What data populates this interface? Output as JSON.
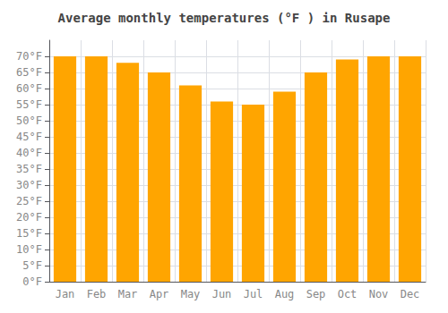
{
  "chart_data": {
    "type": "bar",
    "title": "Average monthly temperatures (°F ) in Rusape",
    "categories": [
      "Jan",
      "Feb",
      "Mar",
      "Apr",
      "May",
      "Jun",
      "Jul",
      "Aug",
      "Sep",
      "Oct",
      "Nov",
      "Dec"
    ],
    "values": [
      70,
      70,
      68,
      65,
      61,
      56,
      55,
      59,
      65,
      69,
      70,
      70
    ],
    "color": "#FFA500",
    "ylim": [
      0,
      75
    ],
    "yticks": [
      {
        "value": 0,
        "label": "0°F"
      },
      {
        "value": 5,
        "label": "5°F"
      },
      {
        "value": 10,
        "label": "10°F"
      },
      {
        "value": 15,
        "label": "15°F"
      },
      {
        "value": 20,
        "label": "20°F"
      },
      {
        "value": 25,
        "label": "25°F"
      },
      {
        "value": 30,
        "label": "30°F"
      },
      {
        "value": 35,
        "label": "35°F"
      },
      {
        "value": 40,
        "label": "40°F"
      },
      {
        "value": 45,
        "label": "45°F"
      },
      {
        "value": 50,
        "label": "50°F"
      },
      {
        "value": 55,
        "label": "55°F"
      },
      {
        "value": 60,
        "label": "60°F"
      },
      {
        "value": 65,
        "label": "65°F"
      },
      {
        "value": 70,
        "label": "70°F"
      }
    ],
    "grid": true
  }
}
